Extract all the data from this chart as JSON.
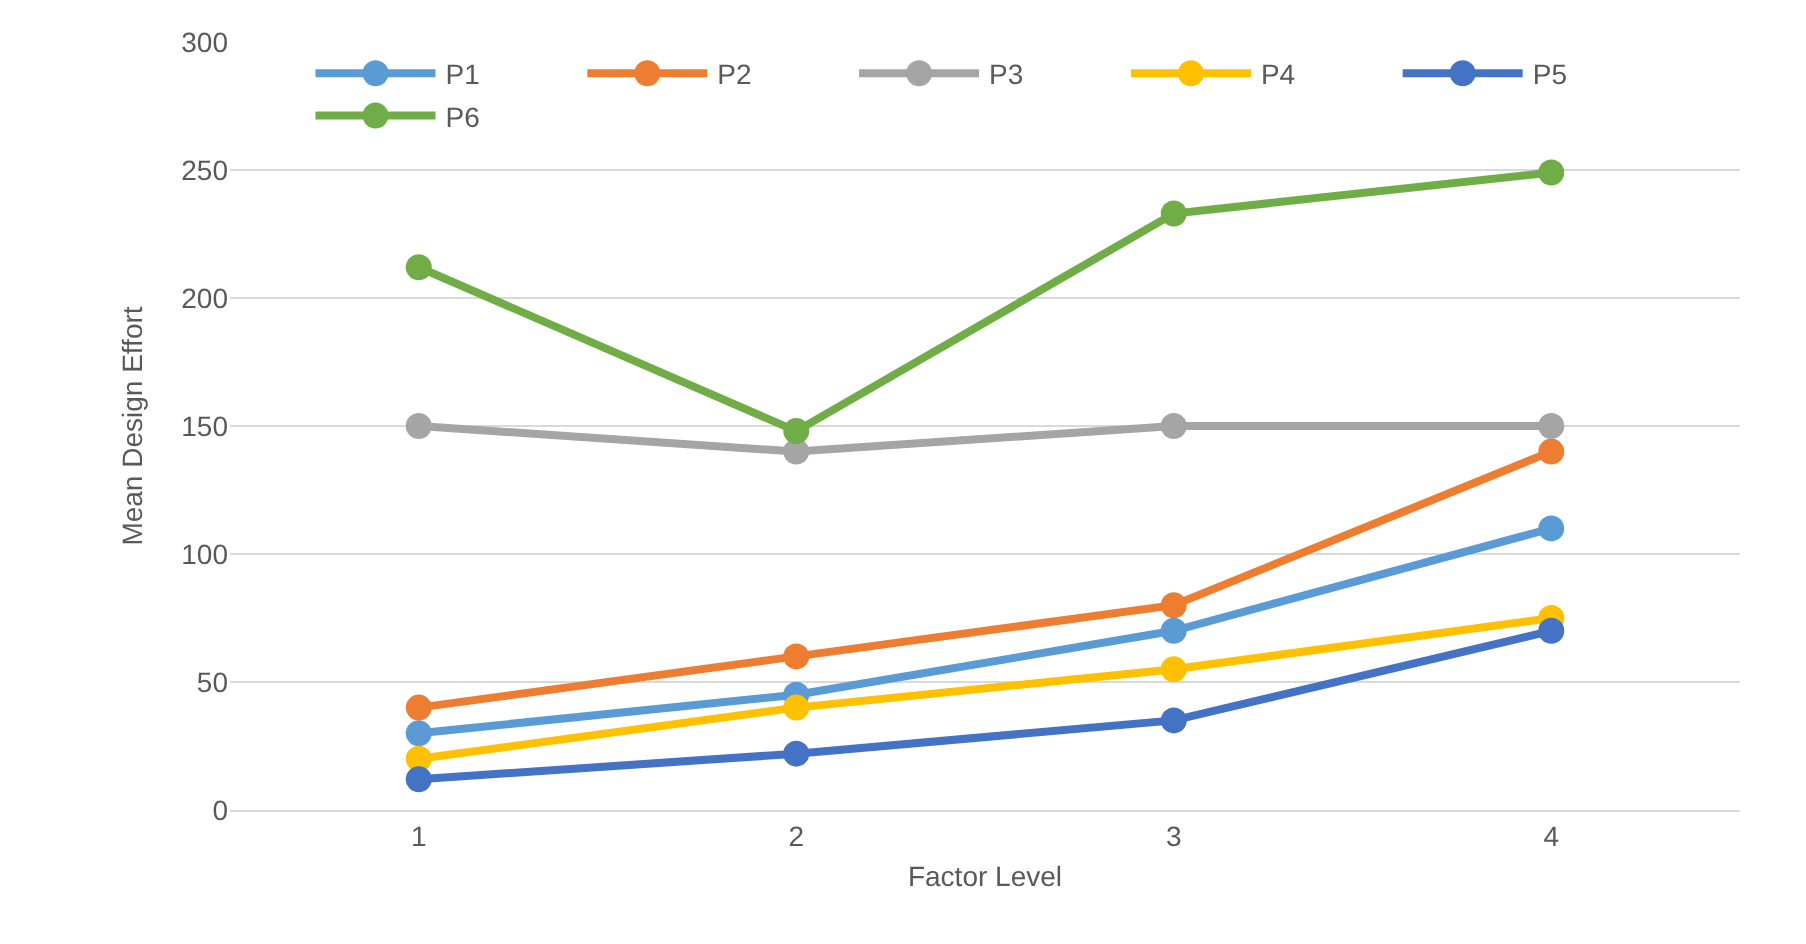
{
  "chart_data": {
    "type": "line",
    "xlabel": "Factor Level",
    "ylabel": "Mean Design Effort",
    "categories": [
      "1",
      "2",
      "3",
      "4"
    ],
    "series": [
      {
        "name": "P1",
        "color": "#5b9bd5",
        "values": [
          30,
          45,
          70,
          110
        ]
      },
      {
        "name": "P2",
        "color": "#ed7d31",
        "values": [
          40,
          60,
          80,
          140
        ]
      },
      {
        "name": "P3",
        "color": "#a5a5a5",
        "values": [
          150,
          140,
          150,
          150
        ]
      },
      {
        "name": "P4",
        "color": "#ffc000",
        "values": [
          20,
          40,
          55,
          75
        ]
      },
      {
        "name": "P5",
        "color": "#4472c4",
        "values": [
          12,
          22,
          35,
          70
        ]
      },
      {
        "name": "P6",
        "color": "#70ad47",
        "values": [
          212,
          148,
          233,
          249
        ]
      }
    ],
    "ylim": [
      0,
      300
    ],
    "yticks": [
      0,
      50,
      100,
      150,
      200,
      250,
      300
    ],
    "grid": "y",
    "legend": "top left",
    "marker": "circle",
    "line_style": "solid"
  }
}
